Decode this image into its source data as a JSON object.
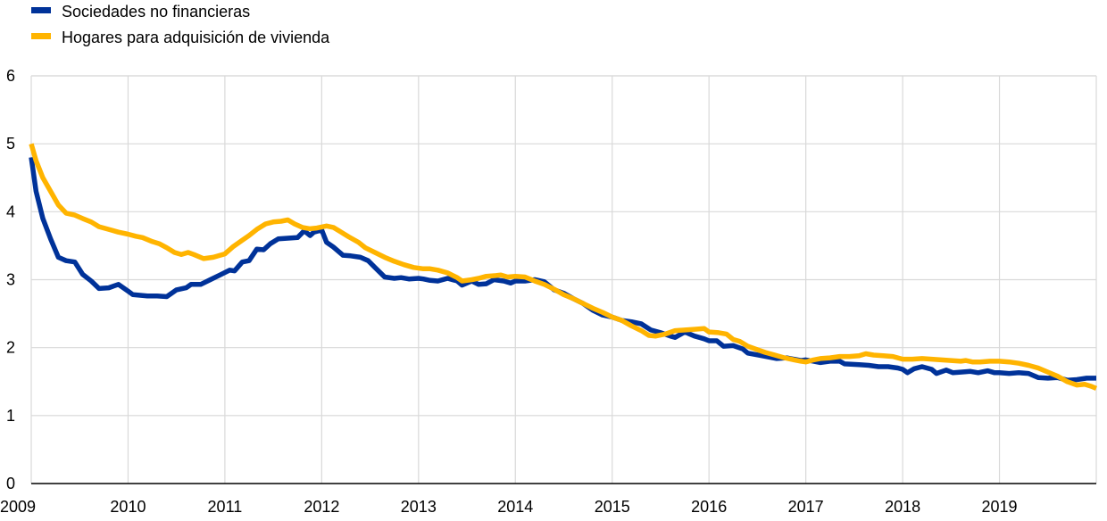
{
  "chart_data": {
    "type": "line",
    "title": "",
    "xlabel": "",
    "ylabel": "",
    "xlim": [
      2009.0,
      2020.0
    ],
    "ylim": [
      0,
      6
    ],
    "y_ticks": [
      "0",
      "1",
      "2",
      "3",
      "4",
      "5",
      "6"
    ],
    "x_ticks": [
      "2009",
      "2010",
      "2011",
      "2012",
      "2013",
      "2014",
      "2015",
      "2016",
      "2017",
      "2018",
      "2019"
    ],
    "grid": "both",
    "legend": "top-left",
    "series": [
      {
        "name": "Sociedades no financieras",
        "color": "#003299",
        "points": [
          [
            2009.0,
            4.8
          ],
          [
            2009.05,
            4.3
          ],
          [
            2009.12,
            3.9
          ],
          [
            2009.2,
            3.6
          ],
          [
            2009.28,
            3.33
          ],
          [
            2009.36,
            3.28
          ],
          [
            2009.45,
            3.26
          ],
          [
            2009.53,
            3.08
          ],
          [
            2009.62,
            2.98
          ],
          [
            2009.7,
            2.87
          ],
          [
            2009.8,
            2.88
          ],
          [
            2009.9,
            2.93
          ],
          [
            2010.0,
            2.83
          ],
          [
            2010.05,
            2.78
          ],
          [
            2010.2,
            2.76
          ],
          [
            2010.3,
            2.76
          ],
          [
            2010.4,
            2.75
          ],
          [
            2010.5,
            2.85
          ],
          [
            2010.6,
            2.88
          ],
          [
            2010.65,
            2.93
          ],
          [
            2010.75,
            2.93
          ],
          [
            2010.85,
            3.0
          ],
          [
            2010.95,
            3.07
          ],
          [
            2011.05,
            3.14
          ],
          [
            2011.1,
            3.13
          ],
          [
            2011.18,
            3.26
          ],
          [
            2011.25,
            3.28
          ],
          [
            2011.33,
            3.45
          ],
          [
            2011.4,
            3.44
          ],
          [
            2011.47,
            3.53
          ],
          [
            2011.55,
            3.6
          ],
          [
            2011.65,
            3.61
          ],
          [
            2011.75,
            3.62
          ],
          [
            2011.82,
            3.72
          ],
          [
            2011.88,
            3.65
          ],
          [
            2011.92,
            3.7
          ],
          [
            2012.0,
            3.73
          ],
          [
            2012.05,
            3.55
          ],
          [
            2012.12,
            3.48
          ],
          [
            2012.22,
            3.36
          ],
          [
            2012.3,
            3.35
          ],
          [
            2012.4,
            3.33
          ],
          [
            2012.48,
            3.28
          ],
          [
            2012.55,
            3.18
          ],
          [
            2012.65,
            3.04
          ],
          [
            2012.75,
            3.02
          ],
          [
            2012.82,
            3.03
          ],
          [
            2012.9,
            3.01
          ],
          [
            2013.0,
            3.02
          ],
          [
            2013.05,
            3.01
          ],
          [
            2013.12,
            2.99
          ],
          [
            2013.2,
            2.98
          ],
          [
            2013.3,
            3.02
          ],
          [
            2013.4,
            2.98
          ],
          [
            2013.45,
            2.92
          ],
          [
            2013.55,
            2.98
          ],
          [
            2013.62,
            2.93
          ],
          [
            2013.7,
            2.94
          ],
          [
            2013.78,
            3.0
          ],
          [
            2013.88,
            2.98
          ],
          [
            2013.95,
            2.95
          ],
          [
            2014.0,
            2.98
          ],
          [
            2014.1,
            2.98
          ],
          [
            2014.2,
            3.0
          ],
          [
            2014.3,
            2.97
          ],
          [
            2014.4,
            2.85
          ],
          [
            2014.5,
            2.8
          ],
          [
            2014.6,
            2.72
          ],
          [
            2014.7,
            2.65
          ],
          [
            2014.8,
            2.55
          ],
          [
            2014.9,
            2.48
          ],
          [
            2015.0,
            2.45
          ],
          [
            2015.1,
            2.4
          ],
          [
            2015.2,
            2.38
          ],
          [
            2015.3,
            2.35
          ],
          [
            2015.4,
            2.26
          ],
          [
            2015.5,
            2.22
          ],
          [
            2015.6,
            2.17
          ],
          [
            2015.65,
            2.15
          ],
          [
            2015.75,
            2.23
          ],
          [
            2015.85,
            2.17
          ],
          [
            2015.95,
            2.13
          ],
          [
            2016.0,
            2.1
          ],
          [
            2016.08,
            2.1
          ],
          [
            2016.15,
            2.02
          ],
          [
            2016.25,
            2.03
          ],
          [
            2016.35,
            1.98
          ],
          [
            2016.4,
            1.92
          ],
          [
            2016.55,
            1.88
          ],
          [
            2016.7,
            1.84
          ],
          [
            2016.8,
            1.85
          ],
          [
            2016.95,
            1.81
          ],
          [
            2017.0,
            1.82
          ],
          [
            2017.08,
            1.8
          ],
          [
            2017.15,
            1.78
          ],
          [
            2017.25,
            1.8
          ],
          [
            2017.35,
            1.8
          ],
          [
            2017.4,
            1.76
          ],
          [
            2017.55,
            1.75
          ],
          [
            2017.65,
            1.74
          ],
          [
            2017.75,
            1.72
          ],
          [
            2017.85,
            1.72
          ],
          [
            2017.95,
            1.7
          ],
          [
            2018.0,
            1.68
          ],
          [
            2018.05,
            1.63
          ],
          [
            2018.12,
            1.69
          ],
          [
            2018.2,
            1.72
          ],
          [
            2018.3,
            1.68
          ],
          [
            2018.35,
            1.62
          ],
          [
            2018.45,
            1.67
          ],
          [
            2018.52,
            1.63
          ],
          [
            2018.6,
            1.64
          ],
          [
            2018.7,
            1.65
          ],
          [
            2018.78,
            1.63
          ],
          [
            2018.88,
            1.66
          ],
          [
            2018.95,
            1.63
          ],
          [
            2019.0,
            1.63
          ],
          [
            2019.1,
            1.62
          ],
          [
            2019.2,
            1.63
          ],
          [
            2019.3,
            1.62
          ],
          [
            2019.4,
            1.56
          ],
          [
            2019.5,
            1.55
          ],
          [
            2019.6,
            1.56
          ],
          [
            2019.7,
            1.52
          ],
          [
            2019.8,
            1.53
          ],
          [
            2019.9,
            1.55
          ],
          [
            2020.0,
            1.55
          ]
        ]
      },
      {
        "name": "Hogares para adquisición de vivienda",
        "color": "#FFB400",
        "points": [
          [
            2009.0,
            5.0
          ],
          [
            2009.05,
            4.75
          ],
          [
            2009.12,
            4.5
          ],
          [
            2009.2,
            4.3
          ],
          [
            2009.28,
            4.1
          ],
          [
            2009.36,
            3.98
          ],
          [
            2009.45,
            3.95
          ],
          [
            2009.53,
            3.9
          ],
          [
            2009.62,
            3.85
          ],
          [
            2009.7,
            3.78
          ],
          [
            2009.8,
            3.74
          ],
          [
            2009.9,
            3.7
          ],
          [
            2010.0,
            3.67
          ],
          [
            2010.08,
            3.64
          ],
          [
            2010.15,
            3.62
          ],
          [
            2010.25,
            3.56
          ],
          [
            2010.32,
            3.53
          ],
          [
            2010.4,
            3.47
          ],
          [
            2010.48,
            3.4
          ],
          [
            2010.55,
            3.37
          ],
          [
            2010.62,
            3.4
          ],
          [
            2010.68,
            3.37
          ],
          [
            2010.78,
            3.31
          ],
          [
            2010.88,
            3.33
          ],
          [
            2011.0,
            3.38
          ],
          [
            2011.08,
            3.48
          ],
          [
            2011.18,
            3.58
          ],
          [
            2011.25,
            3.65
          ],
          [
            2011.33,
            3.74
          ],
          [
            2011.42,
            3.82
          ],
          [
            2011.5,
            3.85
          ],
          [
            2011.58,
            3.86
          ],
          [
            2011.65,
            3.88
          ],
          [
            2011.72,
            3.82
          ],
          [
            2011.8,
            3.77
          ],
          [
            2011.88,
            3.75
          ],
          [
            2011.95,
            3.76
          ],
          [
            2012.05,
            3.79
          ],
          [
            2012.12,
            3.77
          ],
          [
            2012.2,
            3.7
          ],
          [
            2012.28,
            3.63
          ],
          [
            2012.38,
            3.55
          ],
          [
            2012.45,
            3.47
          ],
          [
            2012.55,
            3.4
          ],
          [
            2012.65,
            3.33
          ],
          [
            2012.75,
            3.27
          ],
          [
            2012.85,
            3.22
          ],
          [
            2012.95,
            3.18
          ],
          [
            2013.05,
            3.16
          ],
          [
            2013.12,
            3.16
          ],
          [
            2013.2,
            3.14
          ],
          [
            2013.3,
            3.1
          ],
          [
            2013.4,
            3.03
          ],
          [
            2013.45,
            2.98
          ],
          [
            2013.55,
            3.0
          ],
          [
            2013.62,
            3.02
          ],
          [
            2013.7,
            3.05
          ],
          [
            2013.8,
            3.06
          ],
          [
            2013.85,
            3.07
          ],
          [
            2013.92,
            3.04
          ],
          [
            2014.0,
            3.05
          ],
          [
            2014.1,
            3.04
          ],
          [
            2014.2,
            2.98
          ],
          [
            2014.3,
            2.93
          ],
          [
            2014.4,
            2.86
          ],
          [
            2014.5,
            2.78
          ],
          [
            2014.6,
            2.72
          ],
          [
            2014.7,
            2.65
          ],
          [
            2014.8,
            2.58
          ],
          [
            2014.9,
            2.52
          ],
          [
            2015.0,
            2.45
          ],
          [
            2015.1,
            2.4
          ],
          [
            2015.2,
            2.32
          ],
          [
            2015.3,
            2.25
          ],
          [
            2015.38,
            2.18
          ],
          [
            2015.45,
            2.17
          ],
          [
            2015.55,
            2.2
          ],
          [
            2015.65,
            2.25
          ],
          [
            2015.75,
            2.26
          ],
          [
            2015.85,
            2.27
          ],
          [
            2015.95,
            2.28
          ],
          [
            2016.0,
            2.23
          ],
          [
            2016.1,
            2.22
          ],
          [
            2016.18,
            2.2
          ],
          [
            2016.25,
            2.12
          ],
          [
            2016.32,
            2.09
          ],
          [
            2016.4,
            2.02
          ],
          [
            2016.5,
            1.97
          ],
          [
            2016.58,
            1.93
          ],
          [
            2016.68,
            1.89
          ],
          [
            2016.78,
            1.85
          ],
          [
            2016.88,
            1.82
          ],
          [
            2016.95,
            1.8
          ],
          [
            2017.0,
            1.79
          ],
          [
            2017.08,
            1.82
          ],
          [
            2017.15,
            1.84
          ],
          [
            2017.25,
            1.85
          ],
          [
            2017.35,
            1.87
          ],
          [
            2017.45,
            1.87
          ],
          [
            2017.55,
            1.88
          ],
          [
            2017.62,
            1.91
          ],
          [
            2017.7,
            1.89
          ],
          [
            2017.8,
            1.88
          ],
          [
            2017.9,
            1.87
          ],
          [
            2018.0,
            1.83
          ],
          [
            2018.1,
            1.83
          ],
          [
            2018.2,
            1.84
          ],
          [
            2018.3,
            1.83
          ],
          [
            2018.4,
            1.82
          ],
          [
            2018.5,
            1.81
          ],
          [
            2018.6,
            1.8
          ],
          [
            2018.65,
            1.81
          ],
          [
            2018.72,
            1.79
          ],
          [
            2018.8,
            1.79
          ],
          [
            2018.9,
            1.8
          ],
          [
            2019.0,
            1.8
          ],
          [
            2019.1,
            1.79
          ],
          [
            2019.2,
            1.77
          ],
          [
            2019.3,
            1.74
          ],
          [
            2019.4,
            1.7
          ],
          [
            2019.5,
            1.64
          ],
          [
            2019.6,
            1.58
          ],
          [
            2019.7,
            1.5
          ],
          [
            2019.8,
            1.45
          ],
          [
            2019.88,
            1.46
          ],
          [
            2019.95,
            1.43
          ],
          [
            2020.0,
            1.4
          ]
        ]
      }
    ]
  }
}
